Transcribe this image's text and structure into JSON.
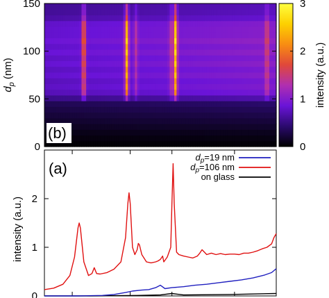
{
  "chart_data": [
    {
      "panel": "(b)",
      "type": "heatmap",
      "ylabel_main": "d",
      "ylabel_sub": "p",
      "ylabel_unit": " (nm)",
      "ylim": [
        0,
        150
      ],
      "yticks": [
        0,
        50,
        100,
        150
      ],
      "colorbar": {
        "label": "intensity (a.u.)",
        "range": [
          0,
          3
        ],
        "ticks": [
          0,
          1,
          2,
          3
        ],
        "colors": [
          "#000000",
          "#2b0a6e",
          "#6a14d8",
          "#b02fb0",
          "#e0483a",
          "#f88d12",
          "#fdd000",
          "#ffff40"
        ]
      },
      "rows_dp_nm": [
        {
          "dp": 3,
          "base": 0.03
        },
        {
          "dp": 9,
          "base": 0.06
        },
        {
          "dp": 15,
          "base": 0.1
        },
        {
          "dp": 21,
          "base": 0.15
        },
        {
          "dp": 27,
          "base": 0.2
        },
        {
          "dp": 33,
          "base": 0.25
        },
        {
          "dp": 39,
          "base": 0.3
        },
        {
          "dp": 45,
          "base": 0.36
        },
        {
          "dp": 51,
          "base": 0.6
        },
        {
          "dp": 57,
          "base": 0.8
        },
        {
          "dp": 63,
          "base": 0.86
        },
        {
          "dp": 69,
          "base": 0.82
        },
        {
          "dp": 75,
          "base": 0.9
        },
        {
          "dp": 81,
          "base": 0.84
        },
        {
          "dp": 87,
          "base": 0.92
        },
        {
          "dp": 93,
          "base": 0.86
        },
        {
          "dp": 99,
          "base": 0.94
        },
        {
          "dp": 105,
          "base": 0.88
        },
        {
          "dp": 111,
          "base": 0.96
        },
        {
          "dp": 117,
          "base": 0.9
        },
        {
          "dp": 123,
          "base": 0.9
        },
        {
          "dp": 129,
          "base": 0.88
        },
        {
          "dp": 135,
          "base": 0.72
        },
        {
          "dp": 141,
          "base": 0.66
        },
        {
          "dp": 147,
          "base": 0.64
        }
      ],
      "peak_columns": [
        {
          "x": 0.17,
          "strength": 1.3
        },
        {
          "x": 0.355,
          "strength": 1.8
        },
        {
          "x": 0.395,
          "strength": 0.5
        },
        {
          "x": 0.545,
          "strength": 0.45
        },
        {
          "x": 0.565,
          "strength": 1.9
        },
        {
          "x": 0.96,
          "strength": 0.7
        }
      ]
    },
    {
      "panel": "(a)",
      "type": "line",
      "ylabel": "intensity (a.u.)",
      "ylim": [
        0,
        3
      ],
      "yticks": [
        0,
        1,
        2
      ],
      "xlim": [
        0,
        1
      ],
      "legend_position": "top-right",
      "series": [
        {
          "label_main": "d",
          "label_sub": "p",
          "label_rest": "=19 nm",
          "color": "#1f1fbf",
          "points": [
            [
              0.0,
              0.0
            ],
            [
              0.15,
              0.0
            ],
            [
              0.25,
              0.01
            ],
            [
              0.3,
              0.03
            ],
            [
              0.35,
              0.07
            ],
            [
              0.38,
              0.1
            ],
            [
              0.42,
              0.12
            ],
            [
              0.45,
              0.13
            ],
            [
              0.48,
              0.17
            ],
            [
              0.5,
              0.22
            ],
            [
              0.52,
              0.15
            ],
            [
              0.55,
              0.17
            ],
            [
              0.6,
              0.19
            ],
            [
              0.65,
              0.22
            ],
            [
              0.7,
              0.24
            ],
            [
              0.75,
              0.27
            ],
            [
              0.8,
              0.3
            ],
            [
              0.85,
              0.33
            ],
            [
              0.9,
              0.37
            ],
            [
              0.95,
              0.43
            ],
            [
              0.98,
              0.48
            ],
            [
              1.0,
              0.56
            ]
          ]
        },
        {
          "label_main": "d",
          "label_sub": "p",
          "label_rest": "=106 nm",
          "color": "#e01010",
          "points": [
            [
              0.0,
              0.13
            ],
            [
              0.04,
              0.16
            ],
            [
              0.08,
              0.24
            ],
            [
              0.11,
              0.42
            ],
            [
              0.13,
              0.8
            ],
            [
              0.145,
              1.4
            ],
            [
              0.15,
              1.5
            ],
            [
              0.155,
              1.4
            ],
            [
              0.17,
              0.7
            ],
            [
              0.19,
              0.42
            ],
            [
              0.205,
              0.46
            ],
            [
              0.215,
              0.58
            ],
            [
              0.225,
              0.46
            ],
            [
              0.24,
              0.45
            ],
            [
              0.27,
              0.48
            ],
            [
              0.3,
              0.55
            ],
            [
              0.33,
              0.7
            ],
            [
              0.35,
              1.2
            ],
            [
              0.36,
              1.9
            ],
            [
              0.365,
              2.12
            ],
            [
              0.37,
              1.9
            ],
            [
              0.38,
              1.0
            ],
            [
              0.39,
              0.85
            ],
            [
              0.4,
              0.95
            ],
            [
              0.405,
              1.08
            ],
            [
              0.41,
              1.05
            ],
            [
              0.42,
              0.85
            ],
            [
              0.44,
              0.7
            ],
            [
              0.46,
              0.68
            ],
            [
              0.48,
              0.7
            ],
            [
              0.49,
              0.72
            ],
            [
              0.5,
              0.75
            ],
            [
              0.51,
              0.82
            ],
            [
              0.515,
              0.7
            ],
            [
              0.53,
              0.8
            ],
            [
              0.545,
              1.0
            ],
            [
              0.55,
              1.9
            ],
            [
              0.555,
              2.72
            ],
            [
              0.56,
              1.9
            ],
            [
              0.57,
              0.9
            ],
            [
              0.58,
              0.85
            ],
            [
              0.6,
              0.82
            ],
            [
              0.62,
              0.8
            ],
            [
              0.64,
              0.78
            ],
            [
              0.66,
              0.82
            ],
            [
              0.67,
              0.88
            ],
            [
              0.68,
              0.95
            ],
            [
              0.69,
              0.9
            ],
            [
              0.7,
              0.85
            ],
            [
              0.72,
              0.88
            ],
            [
              0.74,
              0.85
            ],
            [
              0.76,
              0.87
            ],
            [
              0.78,
              0.85
            ],
            [
              0.8,
              0.86
            ],
            [
              0.82,
              0.86
            ],
            [
              0.84,
              0.85
            ],
            [
              0.86,
              0.88
            ],
            [
              0.88,
              0.88
            ],
            [
              0.9,
              0.9
            ],
            [
              0.92,
              0.93
            ],
            [
              0.94,
              0.97
            ],
            [
              0.96,
              1.0
            ],
            [
              0.98,
              1.07
            ],
            [
              0.99,
              1.2
            ],
            [
              1.0,
              1.28
            ]
          ]
        },
        {
          "label": "on glass",
          "color": "#000000",
          "points": [
            [
              0.0,
              0.0
            ],
            [
              0.2,
              0.0
            ],
            [
              0.4,
              0.01
            ],
            [
              0.5,
              0.02
            ],
            [
              0.55,
              0.05
            ],
            [
              0.6,
              0.02
            ],
            [
              0.8,
              0.03
            ],
            [
              1.0,
              0.05
            ]
          ]
        }
      ]
    }
  ],
  "labels": {
    "panel_a": "(a)",
    "panel_b": "(b)"
  }
}
